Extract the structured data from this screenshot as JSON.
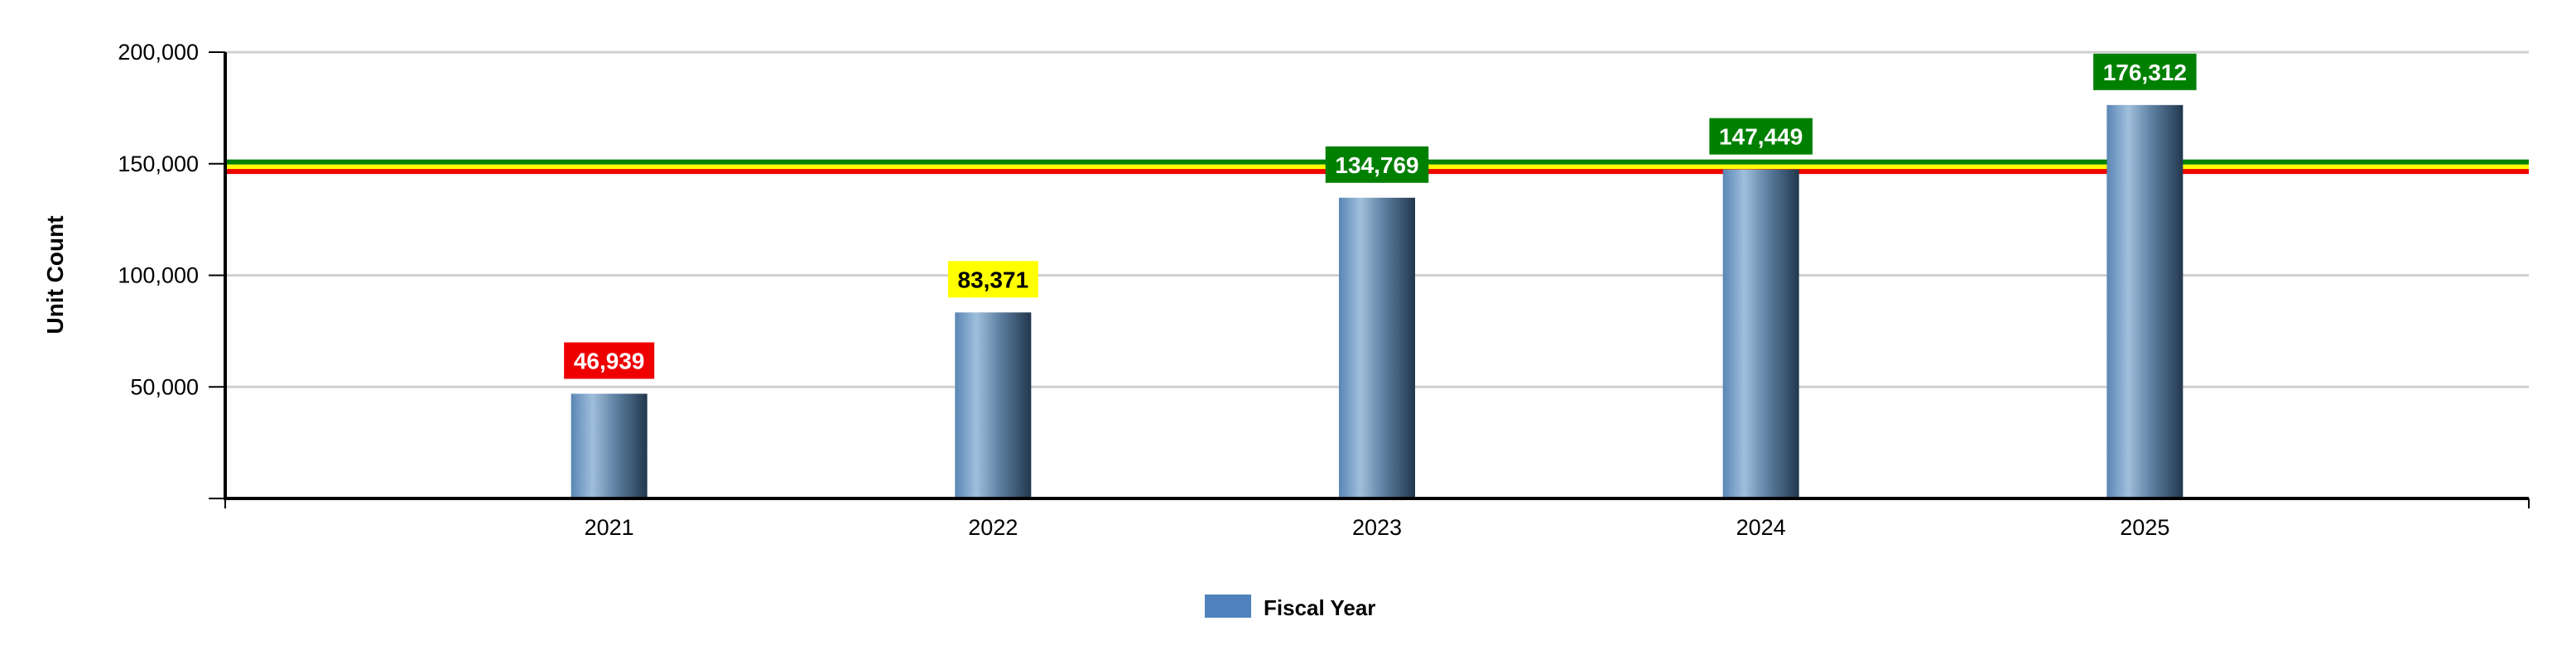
{
  "chart_data": {
    "type": "bar",
    "categories": [
      "2021",
      "2022",
      "2023",
      "2024",
      "2025"
    ],
    "series": [
      {
        "name": "Fiscal Year",
        "values": [
          46939,
          83371,
          134769,
          147449,
          176312
        ]
      }
    ],
    "data_labels": [
      "46,939",
      "83,371",
      "134,769",
      "147,449",
      "176,312"
    ],
    "label_colors": [
      "#ee0000",
      "#ffff00",
      "#008000",
      "#008000",
      "#008000"
    ],
    "label_text_colors": [
      "#ffffff",
      "#000000",
      "#ffffff",
      "#ffffff",
      "#ffffff"
    ],
    "ylabel": "Unit Count",
    "xlabel": "",
    "title": "",
    "ylim": [
      0,
      200000
    ],
    "yticks": [
      50000,
      100000,
      150000,
      200000
    ],
    "ytick_labels": [
      "50,000",
      "100,000",
      "150,000",
      "200,000"
    ],
    "threshold_lines": [
      {
        "value": 150800,
        "color": "#008000"
      },
      {
        "value": 148500,
        "color": "#ffff00"
      },
      {
        "value": 146500,
        "color": "#ee0000"
      }
    ],
    "grid": true,
    "legend_position": "bottom-center",
    "bar_color": "#4f81bd"
  }
}
